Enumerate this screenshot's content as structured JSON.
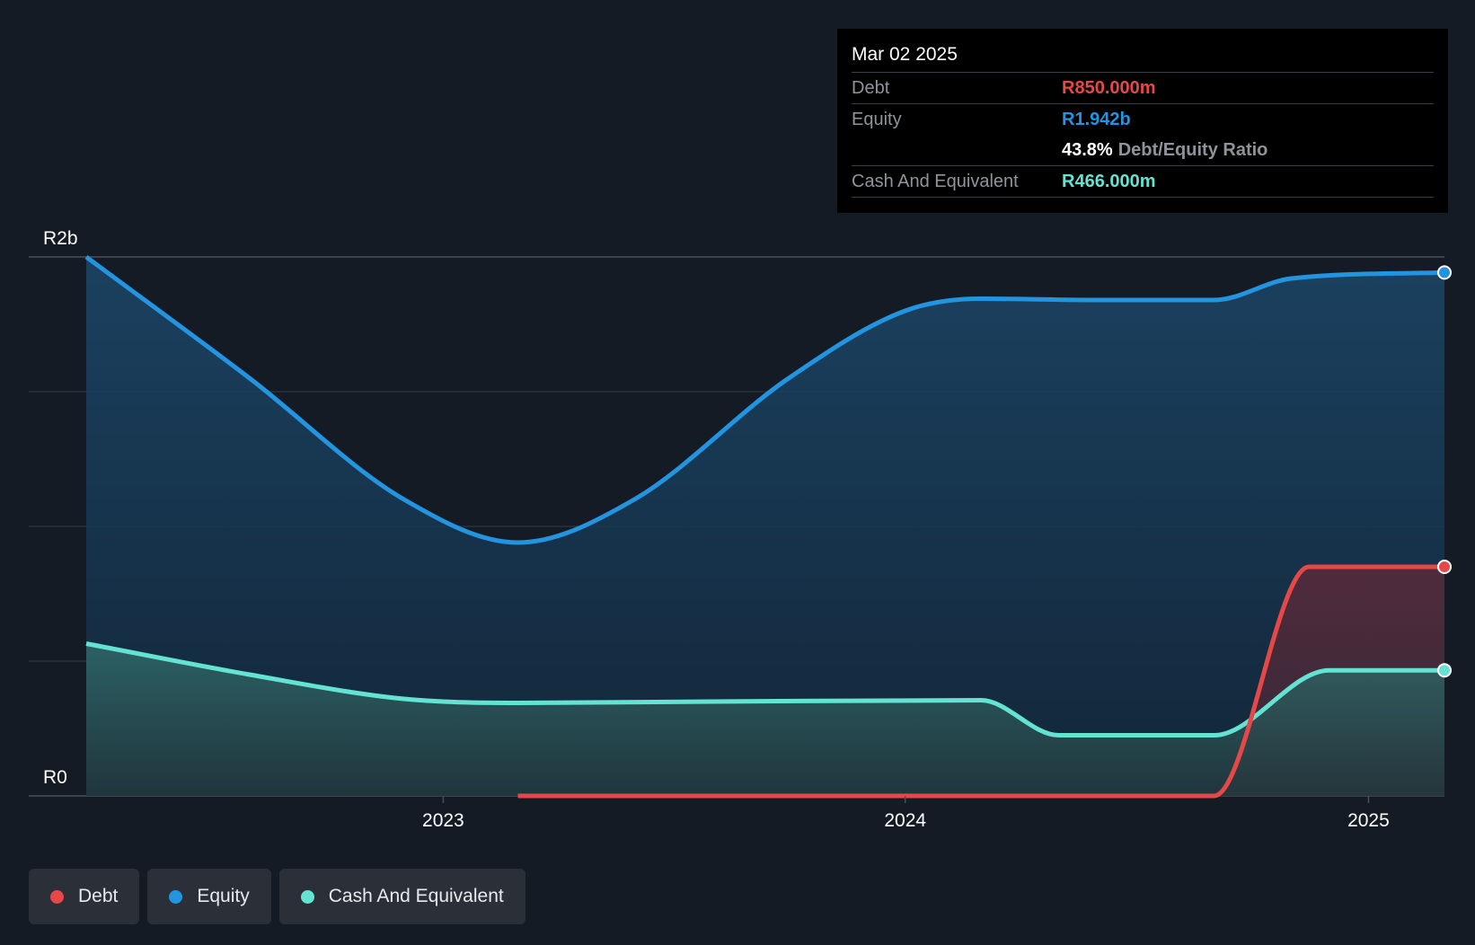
{
  "chart_data": {
    "type": "area",
    "y_axis": {
      "min": 0,
      "max": 2000000000,
      "tick_labels": [
        {
          "value": 2000000000,
          "label": "R2b"
        },
        {
          "value": 0,
          "label": "R0"
        }
      ],
      "gridlines": [
        0,
        500000000,
        1000000000,
        1500000000,
        2000000000
      ]
    },
    "x_axis": {
      "min": "2022-03-25",
      "max": "2025-03-02",
      "tick_labels": [
        {
          "value": "2023-01-01",
          "label": "2023"
        },
        {
          "value": "2024-01-01",
          "label": "2024"
        },
        {
          "value": "2025-01-01",
          "label": "2025"
        }
      ]
    },
    "series": [
      {
        "name": "Equity",
        "color": "#2394df",
        "points": [
          [
            "2022-03-25",
            2000000000
          ],
          [
            "2022-08-01",
            1550000000
          ],
          [
            "2022-12-01",
            1100000000
          ],
          [
            "2023-03-01",
            940000000
          ],
          [
            "2023-06-01",
            1100000000
          ],
          [
            "2023-10-01",
            1550000000
          ],
          [
            "2024-01-01",
            1800000000
          ],
          [
            "2024-03-01",
            1845000000
          ],
          [
            "2024-06-01",
            1840000000
          ],
          [
            "2024-09-01",
            1840000000
          ],
          [
            "2024-11-01",
            1920000000
          ],
          [
            "2025-03-02",
            1942000000
          ]
        ]
      },
      {
        "name": "Cash And Equivalent",
        "color": "#64e3d3",
        "points": [
          [
            "2022-03-25",
            565000000
          ],
          [
            "2022-08-01",
            450000000
          ],
          [
            "2022-12-01",
            360000000
          ],
          [
            "2023-03-01",
            345000000
          ],
          [
            "2023-08-01",
            350000000
          ],
          [
            "2024-03-01",
            355000000
          ],
          [
            "2024-05-01",
            225000000
          ],
          [
            "2024-09-01",
            225000000
          ],
          [
            "2024-12-01",
            466000000
          ],
          [
            "2025-03-02",
            466000000
          ]
        ]
      },
      {
        "name": "Debt",
        "color": "#e64848",
        "points": [
          [
            "2023-03-01",
            0
          ],
          [
            "2024-09-01",
            0
          ],
          [
            "2024-11-15",
            850000000
          ],
          [
            "2025-03-02",
            850000000
          ]
        ]
      }
    ]
  },
  "tooltip": {
    "date": "Mar 02 2025",
    "debt_label": "Debt",
    "debt_value": "R850.000m",
    "equity_label": "Equity",
    "equity_value": "R1.942b",
    "ratio_value": "43.8%",
    "ratio_label": "Debt/Equity Ratio",
    "cash_label": "Cash And Equivalent",
    "cash_value": "R466.000m"
  },
  "legend": {
    "debt": "Debt",
    "equity": "Equity",
    "cash": "Cash And Equivalent"
  },
  "colors": {
    "debt": "#e64848",
    "equity": "#2394df",
    "cash": "#64e3d3"
  }
}
